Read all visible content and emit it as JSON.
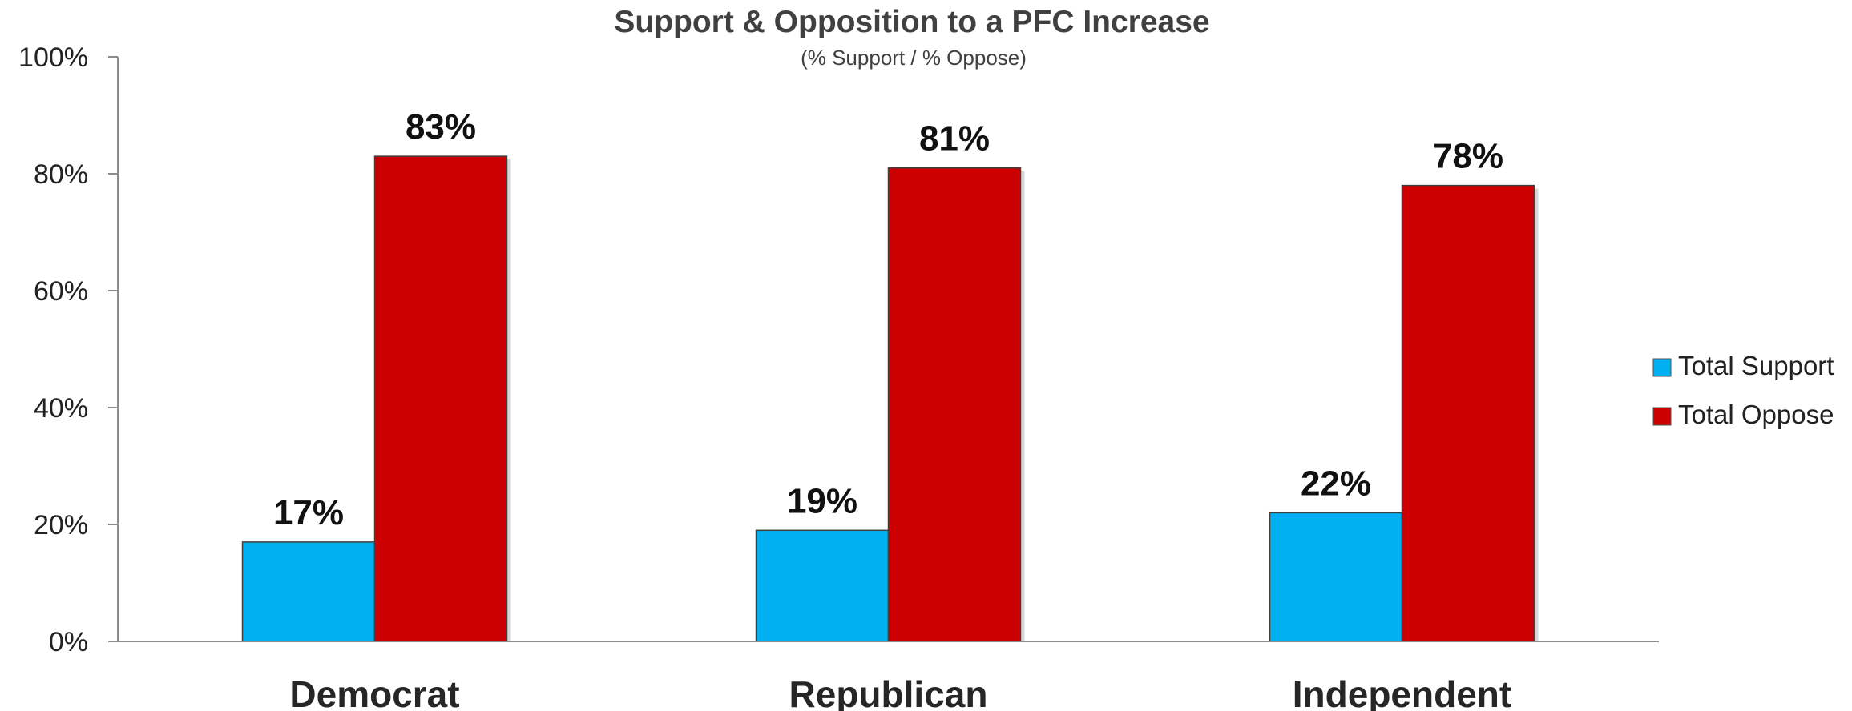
{
  "chart_data": {
    "type": "bar",
    "title": "Support & Opposition to a PFC Increase",
    "subtitle": "(% Support / % Oppose)",
    "categories": [
      "Democrat",
      "Republican",
      "Independent"
    ],
    "series": [
      {
        "name": "Total Support",
        "values": [
          17,
          19,
          22
        ],
        "color": "#00B0F0"
      },
      {
        "name": "Total Oppose",
        "values": [
          83,
          81,
          78
        ],
        "color": "#CC0000"
      }
    ],
    "ylim": [
      0,
      100
    ],
    "yticks": [
      "0%",
      "20%",
      "40%",
      "60%",
      "80%",
      "100%"
    ],
    "data_labels": [
      [
        "17%",
        "19%",
        "22%"
      ],
      [
        "83%",
        "81%",
        "78%"
      ]
    ],
    "grid": false,
    "legend_position": "right"
  }
}
